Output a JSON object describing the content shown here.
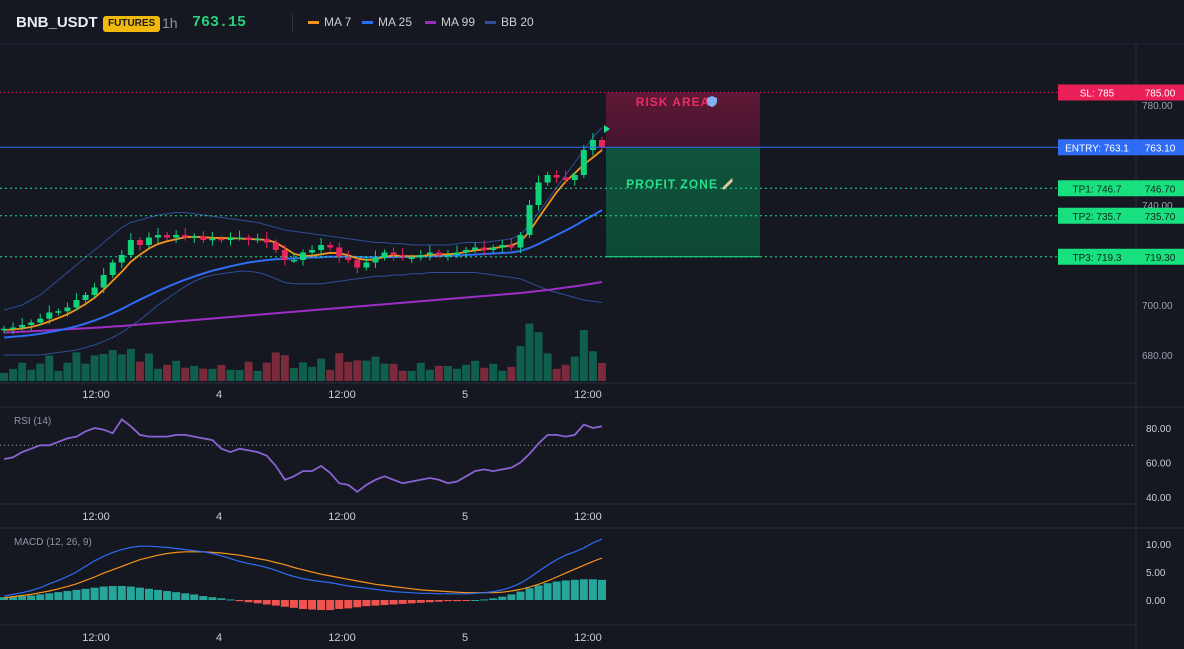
{
  "header": {
    "symbol": "BNB_USDT",
    "badge": "FUTURES",
    "timeframe": "1h",
    "price": "763.15",
    "legend": [
      {
        "label": "MA 7",
        "color": "#f7931a"
      },
      {
        "label": "MA 25",
        "color": "#2f6cf5"
      },
      {
        "label": "MA 99",
        "color": "#9c2ec6"
      },
      {
        "label": "BB 20",
        "color": "#2e4d9a"
      }
    ]
  },
  "colors": {
    "up": "#10d27a",
    "down": "#e8245c",
    "grid": "#222632",
    "bg": "#151821"
  },
  "levels": {
    "sl": {
      "tag": "SL: 785",
      "value": "785.00",
      "price": 785
    },
    "entry": {
      "tag": "ENTRY: 763.1",
      "value": "763.10",
      "price": 763.1
    },
    "tp": [
      {
        "tag": "TP1: 746.7",
        "value": "746.70",
        "price": 746.7
      },
      {
        "tag": "TP2: 735.7",
        "value": "735.70",
        "price": 735.7
      },
      {
        "tag": "TP3: 719.3",
        "value": "719.30",
        "price": 719.3
      }
    ]
  },
  "zones": {
    "risk_label": "RISK AREA",
    "risk_icon": "shield-icon",
    "profit_label": "PROFIT ZONE",
    "profit_icon": "rocket-icon"
  },
  "price_axis": {
    "ticks": [
      "780.00",
      "740.00",
      "700.00",
      "680.00"
    ],
    "tick_values": [
      780,
      740,
      700,
      680
    ]
  },
  "time_axis": {
    "labels": [
      "12:00",
      "4",
      "12:00",
      "5",
      "12:00"
    ]
  },
  "rsi": {
    "label": "RSI (14)",
    "ticks": [
      "80.00",
      "60.00",
      "40.00"
    ],
    "tick_values": [
      80,
      60,
      40
    ],
    "overbought": 70
  },
  "macd": {
    "label": "MACD (12, 26, 9)",
    "ticks": [
      "10.00",
      "5.00",
      "0.00"
    ],
    "tick_values": [
      10,
      5,
      0
    ]
  },
  "chart_data": {
    "type": "candlestick",
    "series": [
      {
        "name": "candles",
        "close": [
          690.5,
          691,
          692,
          693,
          694.5,
          697,
          697.5,
          699,
          702,
          704,
          707,
          712,
          717,
          720,
          726,
          724,
          727,
          728,
          727,
          728,
          727,
          727.5,
          726,
          726.5,
          726,
          727,
          727,
          726,
          726.5,
          725,
          722,
          718,
          718,
          721,
          722,
          724,
          723,
          719,
          718,
          715,
          717,
          719,
          721,
          720,
          719,
          719,
          720,
          721,
          720,
          720,
          721,
          722,
          723,
          722,
          723,
          724,
          723,
          728,
          740,
          749,
          752,
          751,
          750,
          752,
          762,
          766,
          763.15
        ]
      },
      {
        "name": "MA 7",
        "values": [
          690,
          690.2,
          690.6,
          691.2,
          692.1,
          693.4,
          694.8,
          696.3,
          698.2,
          700.4,
          702.9,
          706.1,
          709.7,
          713.3,
          717.3,
          720.1,
          722.6,
          724.4,
          725.5,
          726.3,
          727.1,
          727.3,
          727.1,
          726.9,
          726.8,
          726.7,
          726.6,
          726.4,
          726.3,
          726,
          725,
          722.8,
          720.5,
          719.6,
          719.7,
          720.3,
          720.9,
          720.7,
          719.9,
          718.6,
          718,
          718.3,
          719.3,
          719.8,
          719.6,
          719.5,
          719.6,
          720,
          720.2,
          720.3,
          720.6,
          721.2,
          721.9,
          722.3,
          722.7,
          723.3,
          723.9,
          725.3,
          729.5,
          734.8,
          740,
          745.2,
          749.4,
          752.7,
          756.2,
          759,
          762
        ]
      },
      {
        "name": "MA 25",
        "values": [
          687,
          687.3,
          687.6,
          688,
          688.5,
          689.1,
          689.8,
          690.6,
          691.5,
          692.6,
          693.8,
          695.2,
          696.7,
          698.4,
          700.3,
          702.1,
          703.9,
          705.6,
          707.2,
          708.7,
          710.1,
          711.4,
          712.6,
          713.7,
          714.6,
          715.5,
          716.3,
          717,
          717.5,
          718,
          718.3,
          718.5,
          718.6,
          718.8,
          719,
          719.1,
          719.3,
          719.3,
          719.3,
          719.2,
          719.1,
          719.1,
          719.1,
          719.2,
          719.2,
          719.3,
          719.4,
          719.5,
          719.6,
          719.7,
          719.8,
          720,
          720.2,
          720.4,
          720.6,
          720.8,
          721,
          721.6,
          722.8,
          724.4,
          726.2,
          728,
          729.8,
          731.7,
          733.8,
          735.8,
          738
        ]
      },
      {
        "name": "MA 99",
        "values": [
          689,
          689.1,
          689.3,
          689.5,
          689.7,
          689.9,
          690.1,
          690.3,
          690.5,
          690.7,
          690.9,
          691.1,
          691.4,
          691.6,
          691.9,
          692.2,
          692.5,
          692.8,
          693.1,
          693.4,
          693.7,
          694,
          694.3,
          694.6,
          694.9,
          695.2,
          695.5,
          695.8,
          696.1,
          696.4,
          696.7,
          697,
          697.3,
          697.6,
          697.9,
          698.2,
          698.5,
          698.8,
          699.1,
          699.4,
          699.7,
          700,
          700.3,
          700.6,
          700.9,
          701.2,
          701.5,
          701.8,
          702.1,
          702.4,
          702.7,
          703,
          703.3,
          703.6,
          703.9,
          704.2,
          704.5,
          704.8,
          705.2,
          705.6,
          706,
          706.5,
          707,
          707.5,
          708,
          708.6,
          709.2
        ]
      },
      {
        "name": "BB 20",
        "upper": [
          698,
          699,
          700,
          702,
          704,
          707,
          710,
          713,
          716,
          719,
          722,
          725,
          728,
          731,
          733,
          734,
          735,
          736,
          736.5,
          737,
          737,
          736.5,
          736,
          735.5,
          735,
          734.5,
          734,
          733.5,
          733,
          732,
          731,
          730,
          729.5,
          729,
          728.5,
          728,
          727.5,
          727,
          726.5,
          726,
          725.5,
          725,
          725,
          724.5,
          724.5,
          724,
          724,
          724,
          724,
          724,
          724.5,
          725,
          725,
          725,
          725.5,
          726,
          726.5,
          728,
          732,
          737,
          742,
          747,
          752,
          757,
          762,
          767,
          771
        ],
        "lower": [
          680,
          680,
          680,
          680,
          680,
          680.5,
          681,
          681.5,
          682,
          683,
          684,
          685.5,
          687,
          689,
          691.5,
          694,
          697,
          700,
          702.5,
          705,
          707.5,
          709.5,
          711,
          712,
          712.5,
          713,
          713.5,
          713.5,
          713,
          712,
          710.5,
          709,
          708.5,
          708.5,
          708.5,
          708.5,
          709,
          709.5,
          710,
          710.5,
          711,
          711.5,
          711.5,
          712,
          712,
          712.5,
          712.5,
          713,
          713,
          713,
          713,
          713,
          713,
          712.5,
          712,
          711.5,
          711,
          710.5,
          709,
          707.5,
          706,
          705,
          704,
          703,
          702,
          701.5,
          701
        ]
      },
      {
        "name": "RSI (14)",
        "values": [
          62,
          63,
          66,
          68,
          70,
          70,
          72,
          74,
          75,
          78,
          80,
          79,
          77,
          85,
          81,
          76,
          75,
          75,
          75,
          76,
          76,
          75,
          74,
          73,
          68,
          66,
          68,
          67,
          66,
          64,
          58,
          50,
          52,
          55,
          55,
          58,
          54,
          48,
          47,
          43,
          47,
          50,
          52,
          50,
          48,
          49,
          50,
          51,
          50,
          48,
          49,
          52,
          55,
          56,
          55,
          56,
          57,
          60,
          65,
          71,
          76,
          76,
          75,
          76,
          82,
          80,
          81
        ]
      },
      {
        "name": "MACD",
        "values": [
          0.7,
          1,
          1.3,
          1.7,
          2.2,
          2.9,
          3.5,
          4.2,
          5,
          6,
          7,
          7.8,
          8.5,
          9,
          9.4,
          9.6,
          9.6,
          9.5,
          9.4,
          9.2,
          9,
          8.8,
          8.6,
          8.3,
          7.9,
          7.4,
          6.9,
          6.5,
          6.2,
          5.8,
          5.3,
          4.7,
          4.2,
          3.8,
          3.5,
          3.3,
          3.1,
          2.8,
          2.5,
          2.3,
          2.1,
          1.9,
          1.7,
          1.5,
          1.4,
          1.3,
          1.2,
          1.2,
          1.1,
          1.1,
          1.1,
          1.1,
          1.2,
          1.3,
          1.5,
          1.8,
          2.3,
          3,
          4,
          5.1,
          6.2,
          7.2,
          8,
          8.6,
          9.3,
          10.2,
          10.9
        ]
      },
      {
        "name": "Signal",
        "values": [
          0.4,
          0.6,
          0.8,
          1,
          1.3,
          1.6,
          2,
          2.4,
          2.9,
          3.5,
          4.1,
          4.8,
          5.4,
          6,
          6.6,
          7.2,
          7.6,
          8,
          8.3,
          8.5,
          8.6,
          8.6,
          8.6,
          8.5,
          8.4,
          8.2,
          8,
          7.7,
          7.4,
          7.1,
          6.7,
          6.3,
          5.8,
          5.4,
          5,
          4.6,
          4.3,
          4,
          3.7,
          3.4,
          3.1,
          2.8,
          2.6,
          2.4,
          2.2,
          2,
          1.8,
          1.7,
          1.6,
          1.5,
          1.4,
          1.3,
          1.3,
          1.3,
          1.3,
          1.4,
          1.6,
          1.9,
          2.3,
          2.8,
          3.4,
          4.1,
          4.8,
          5.5,
          6.2,
          6.9,
          7.5
        ]
      },
      {
        "name": "Histogram",
        "values": [
          0.5,
          0.6,
          0.7,
          0.8,
          1,
          1.2,
          1.4,
          1.6,
          1.8,
          2,
          2.2,
          2.4,
          2.5,
          2.5,
          2.4,
          2.2,
          2,
          1.8,
          1.6,
          1.4,
          1.2,
          1,
          0.7,
          0.5,
          0.3,
          0.1,
          -0.2,
          -0.4,
          -0.6,
          -0.8,
          -1,
          -1.2,
          -1.4,
          -1.6,
          -1.7,
          -1.8,
          -1.8,
          -1.6,
          -1.5,
          -1.3,
          -1.1,
          -1,
          -0.9,
          -0.8,
          -0.7,
          -0.6,
          -0.5,
          -0.4,
          -0.3,
          -0.2,
          -0.2,
          -0.1,
          0,
          0.1,
          0.3,
          0.6,
          1,
          1.5,
          2.1,
          2.6,
          3,
          3.3,
          3.5,
          3.6,
          3.7,
          3.7,
          3.6
        ]
      }
    ]
  }
}
